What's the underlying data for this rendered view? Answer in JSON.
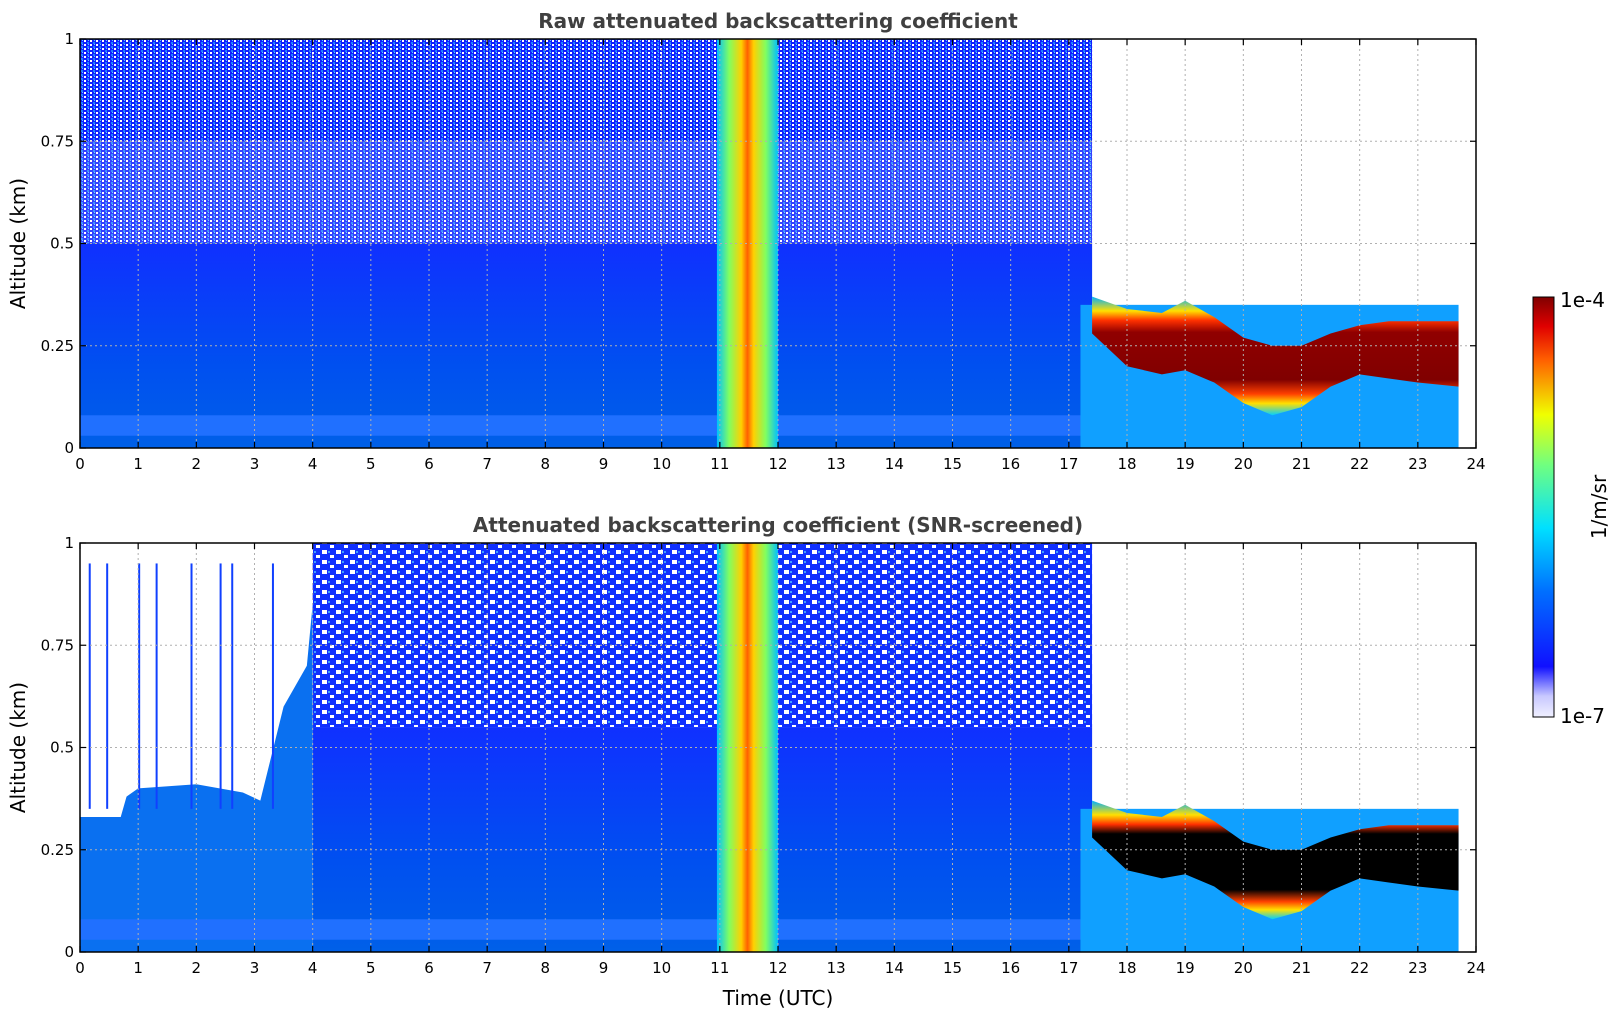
{
  "chart_data": [
    {
      "type": "heatmap",
      "title": "Raw attenuated backscattering coefficient",
      "ylabel": "Altitude (km)",
      "xlabel": "",
      "xlim": [
        0,
        24
      ],
      "ylim": [
        0,
        1
      ],
      "xticks": [
        "0",
        "1",
        "2",
        "3",
        "4",
        "5",
        "6",
        "7",
        "8",
        "9",
        "10",
        "11",
        "12",
        "13",
        "14",
        "15",
        "16",
        "17",
        "18",
        "19",
        "20",
        "21",
        "22",
        "23",
        "24"
      ],
      "yticks": [
        "0",
        "0.25",
        "0.5",
        "0.75",
        "1"
      ],
      "grid": true,
      "features": [
        {
          "feature": "fog/cloud layer",
          "x": [
            17.4,
            23.7
          ],
          "y": [
            0.1,
            0.35
          ],
          "level": "high"
        },
        {
          "feature": "precipitation column",
          "x": [
            11.0,
            12.0
          ],
          "y": [
            0,
            1
          ],
          "level": "medium"
        },
        {
          "feature": "boundary-layer aerosol",
          "x": [
            0,
            17.4
          ],
          "y": [
            0,
            0.5
          ],
          "level": "low"
        }
      ]
    },
    {
      "type": "heatmap",
      "title": "Attenuated backscattering coefficient (SNR-screened)",
      "ylabel": "Altitude (km)",
      "xlabel": "Time (UTC)",
      "xlim": [
        0,
        24
      ],
      "ylim": [
        0,
        1
      ],
      "xticks": [
        "0",
        "1",
        "2",
        "3",
        "4",
        "5",
        "6",
        "7",
        "8",
        "9",
        "10",
        "11",
        "12",
        "13",
        "14",
        "15",
        "16",
        "17",
        "18",
        "19",
        "20",
        "21",
        "22",
        "23",
        "24"
      ],
      "yticks": [
        "0",
        "0.25",
        "0.5",
        "0.75",
        "1"
      ],
      "grid": true,
      "features": [
        {
          "feature": "fog/cloud layer (saturated)",
          "x": [
            17.4,
            23.7
          ],
          "y": [
            0.1,
            0.33
          ],
          "level": "high"
        },
        {
          "feature": "precipitation column",
          "x": [
            11.0,
            12.0
          ],
          "y": [
            0,
            1
          ],
          "level": "medium"
        },
        {
          "feature": "screened aerosol layer",
          "x": [
            0,
            4
          ],
          "y": [
            0,
            0.4
          ],
          "level": "low"
        }
      ]
    }
  ],
  "colorbar": {
    "label": "1/m/sr",
    "max_label": "1e-4",
    "min_label": "1e-7",
    "colormap": "jet"
  }
}
